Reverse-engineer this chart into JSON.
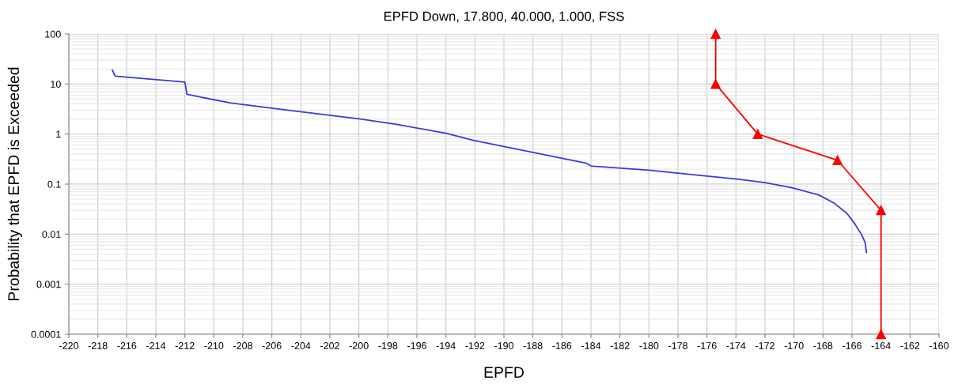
{
  "chart_data": {
    "type": "line",
    "title": "EPFD Down, 17.800, 40.000, 1.000, FSS",
    "xlabel": "EPFD",
    "ylabel": "Probability that EPFD is Exceeded",
    "log": "y",
    "grid": true,
    "xlim": [
      -220,
      -160
    ],
    "xticks": [
      -220,
      -218,
      -216,
      -214,
      -212,
      -210,
      -208,
      -206,
      -204,
      -202,
      -200,
      -198,
      -196,
      -194,
      -192,
      -190,
      -188,
      -186,
      -184,
      -182,
      -180,
      -178,
      -176,
      -174,
      -172,
      -170,
      -168,
      -166,
      -164,
      -162,
      -160
    ],
    "ylim": [
      0.0001,
      100
    ],
    "yticks": [
      0.0001,
      0.001,
      0.01,
      0.1,
      1,
      10,
      100
    ],
    "series": [
      {
        "color": "#3a3ae0",
        "marker": "none",
        "x": [
          -217.0,
          -216.8,
          -212.0,
          -211.85,
          -208.9,
          -205.7,
          -199.9,
          -197.4,
          -194.0,
          -192.1,
          -184.3,
          -184.0,
          -182.1,
          -180.0,
          -178.0,
          -176.0,
          -173.8,
          -172.0,
          -170.2,
          -168.3,
          -167.25,
          -166.35,
          -165.8,
          -165.35,
          -165.1,
          -165.0
        ],
        "values": [
          19,
          14.4,
          10.9,
          6.2,
          4.2,
          3.2,
          2.0,
          1.56,
          1.04,
          0.75,
          0.26,
          0.23,
          0.21,
          0.19,
          0.166,
          0.145,
          0.125,
          0.107,
          0.085,
          0.061,
          0.042,
          0.026,
          0.016,
          0.0099,
          0.0069,
          0.0043
        ]
      },
      {
        "color": "#ff0000",
        "marker": "triangle",
        "x": [
          -175.4,
          -175.4,
          -172.5,
          -167.0,
          -164.0,
          -164.0
        ],
        "values": [
          100,
          10,
          1,
          0.3,
          0.03,
          0.0001
        ]
      }
    ]
  }
}
